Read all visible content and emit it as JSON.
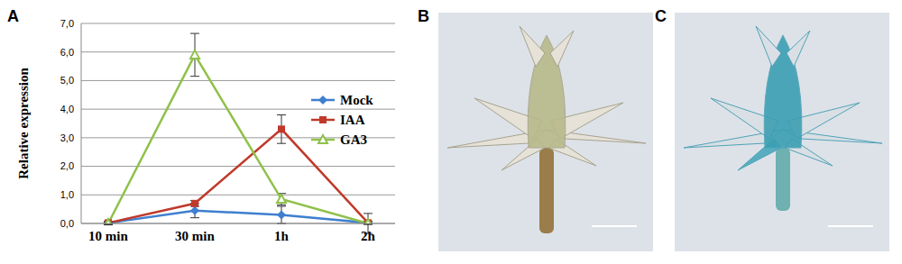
{
  "chart_data": {
    "type": "line",
    "y_label": "Relative expression",
    "categories": [
      "10 min",
      "30 min",
      "1h",
      "2h"
    ],
    "series": [
      {
        "name": "Mock",
        "color": "#3f7fcf",
        "marker": "diamond",
        "values": [
          0.02,
          0.45,
          0.3,
          0.02
        ],
        "errors": [
          0.05,
          0.25,
          0.3,
          0.05
        ]
      },
      {
        "name": "IAA",
        "color": "#c0392b",
        "marker": "square",
        "values": [
          0.02,
          0.7,
          3.3,
          0.02
        ],
        "errors": [
          0.05,
          0.1,
          0.5,
          0.05
        ]
      },
      {
        "name": "GA3",
        "color": "#8fc14a",
        "marker": "triangle",
        "values": [
          0.0,
          5.9,
          0.85,
          0.0
        ],
        "errors": [
          0.05,
          0.75,
          0.2,
          0.35
        ]
      }
    ],
    "ylim": [
      0,
      7
    ],
    "yticks": [
      {
        "value": 0,
        "label": "0,0"
      },
      {
        "value": 1,
        "label": "1,0"
      },
      {
        "value": 2,
        "label": "2,0"
      },
      {
        "value": 3,
        "label": "3,0"
      },
      {
        "value": 4,
        "label": "4,0"
      },
      {
        "value": 5,
        "label": "5,0"
      },
      {
        "value": 6,
        "label": "6,0"
      },
      {
        "value": 7,
        "label": "7,0"
      }
    ],
    "grid": true,
    "legend": "right"
  },
  "panels": [
    {
      "label": "A"
    },
    {
      "label": "B"
    },
    {
      "label": "C"
    }
  ]
}
